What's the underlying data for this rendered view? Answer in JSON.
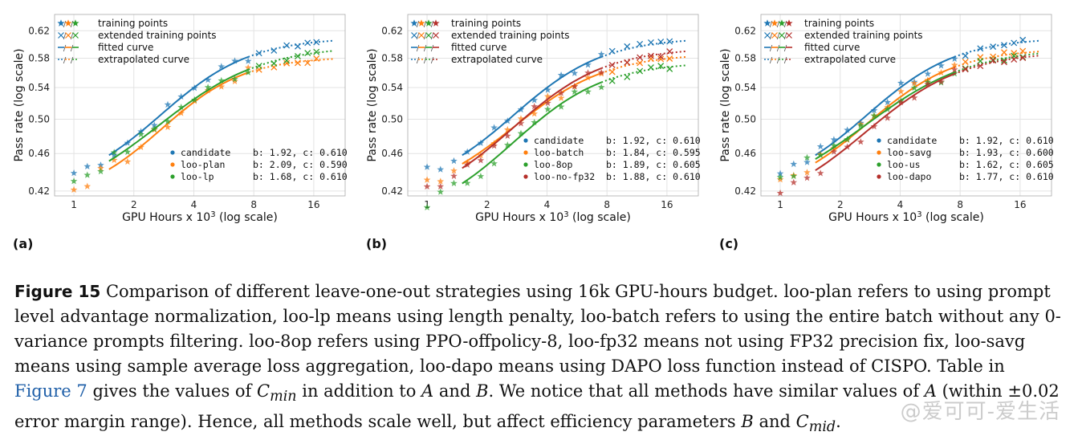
{
  "colors": {
    "blue": "#1f77b4",
    "orange": "#ff7f0e",
    "green": "#2ca02c",
    "red": "#b5302b"
  },
  "legend_top": {
    "training": "training points",
    "extended": "extended training points",
    "fitted": "fitted curve",
    "extrapolated": "extrapolated curve"
  },
  "panel_labels": [
    "(a)",
    "(b)",
    "(c)"
  ],
  "chart_data": [
    {
      "type": "line",
      "xlabel": "GPU Hours x 10^3 (log scale)",
      "ylabel": "Pass rate (log scale)",
      "xticks": [
        1,
        2,
        4,
        8,
        16
      ],
      "yticks": [
        "0.42",
        "0.46",
        "0.50",
        "0.54",
        "0.58",
        "0.62"
      ],
      "xlim": [
        0.8,
        23
      ],
      "ylim": [
        0.415,
        0.645
      ],
      "series": [
        {
          "name": "candidate",
          "b": 1.92,
          "c": 0.61,
          "color": "blue",
          "fit_range": [
            1.5,
            7.5
          ],
          "ext_range": [
            7.5,
            20
          ],
          "offset": 0.0
        },
        {
          "name": "loo-plan",
          "b": 2.09,
          "c": 0.59,
          "color": "orange",
          "fit_range": [
            1.5,
            7.5
          ],
          "ext_range": [
            7.5,
            20
          ],
          "offset": -0.008
        },
        {
          "name": "loo-lp",
          "b": 1.68,
          "c": 0.61,
          "color": "green",
          "fit_range": [
            1.5,
            7.5
          ],
          "ext_range": [
            7.5,
            20
          ],
          "offset": -0.012
        }
      ],
      "legend_text": [
        {
          "name": "candidate",
          "params": "b: 1.92, c: 0.610"
        },
        {
          "name": "loo-plan",
          "params": "b: 2.09, c: 0.590"
        },
        {
          "name": "loo-lp",
          "params": "b: 1.68, c: 0.610"
        }
      ]
    },
    {
      "type": "line",
      "xlabel": "GPU Hours x 10^3 (log scale)",
      "ylabel": "Pass rate (log scale)",
      "xticks": [
        1,
        2,
        4,
        8,
        16
      ],
      "yticks": [
        "0.42",
        "0.46",
        "0.50",
        "0.54",
        "0.58",
        "0.62"
      ],
      "xlim": [
        0.8,
        23
      ],
      "ylim": [
        0.415,
        0.645
      ],
      "series": [
        {
          "name": "candidate",
          "b": 1.92,
          "c": 0.61,
          "color": "blue",
          "fit_range": [
            1.5,
            7.5
          ],
          "ext_range": [
            7.5,
            20
          ],
          "offset": 0.0
        },
        {
          "name": "loo-batch",
          "b": 1.84,
          "c": 0.595,
          "color": "orange",
          "fit_range": [
            1.5,
            7.5
          ],
          "ext_range": [
            7.5,
            20
          ],
          "offset": -0.008
        },
        {
          "name": "loo-8op",
          "b": 1.89,
          "c": 0.605,
          "color": "green",
          "fit_range": [
            1.5,
            7.5
          ],
          "ext_range": [
            7.5,
            20
          ],
          "offset": -0.03
        },
        {
          "name": "loo-no-fp32",
          "b": 1.88,
          "c": 0.61,
          "color": "red",
          "fit_range": [
            1.5,
            7.5
          ],
          "ext_range": [
            7.5,
            20
          ],
          "offset": -0.015
        }
      ],
      "legend_text": [
        {
          "name": "candidate",
          "params": "b: 1.92, c: 0.610"
        },
        {
          "name": "loo-batch",
          "params": "b: 1.84, c: 0.595"
        },
        {
          "name": "loo-8op",
          "params": "b: 1.89, c: 0.605"
        },
        {
          "name": "loo-no-fp32",
          "params": "b: 1.88, c: 0.610"
        }
      ]
    },
    {
      "type": "line",
      "xlabel": "GPU Hours x 10^3 (log scale)",
      "ylabel": "Pass rate (log scale)",
      "xticks": [
        1,
        2,
        4,
        8,
        16
      ],
      "yticks": [
        "0.42",
        "0.46",
        "0.50",
        "0.54",
        "0.58",
        "0.62"
      ],
      "xlim": [
        0.8,
        23
      ],
      "ylim": [
        0.415,
        0.645
      ],
      "series": [
        {
          "name": "candidate",
          "b": 1.92,
          "c": 0.61,
          "color": "blue",
          "fit_range": [
            1.5,
            7.5
          ],
          "ext_range": [
            7.5,
            20
          ],
          "offset": 0.0
        },
        {
          "name": "loo-savg",
          "b": 1.93,
          "c": 0.6,
          "color": "orange",
          "fit_range": [
            1.5,
            7.5
          ],
          "ext_range": [
            7.5,
            20
          ],
          "offset": -0.006
        },
        {
          "name": "loo-us",
          "b": 1.62,
          "c": 0.605,
          "color": "green",
          "fit_range": [
            1.5,
            7.5
          ],
          "ext_range": [
            7.5,
            20
          ],
          "offset": -0.01
        },
        {
          "name": "loo-dapo",
          "b": 1.77,
          "c": 0.61,
          "color": "red",
          "fit_range": [
            1.5,
            7.5
          ],
          "ext_range": [
            7.5,
            20
          ],
          "offset": -0.02
        }
      ],
      "legend_text": [
        {
          "name": "candidate",
          "params": "b: 1.92, c: 0.610"
        },
        {
          "name": "loo-savg",
          "params": "b: 1.93, c: 0.600"
        },
        {
          "name": "loo-us",
          "params": "b: 1.62, c: 0.605"
        },
        {
          "name": "loo-dapo",
          "params": "b: 1.77, c: 0.610"
        }
      ]
    }
  ],
  "caption": {
    "title": "Figure 15",
    "p1": " Comparison of different leave-one-out strategies using 16k GPU-hours budget. loo-plan refers to using prompt level advantage normalization, loo-lp means using length penalty, loo-batch refers to using the entire batch without any 0-variance prompts filtering. loo-8op refers using PPO-offpolicy-8, loo-fp32 means not using FP32 precision fix, loo-savg means using sample average loss aggregation, loo-dapo means using DAPO loss function instead of CISPO. Table in ",
    "ref": "Figure 7",
    "p2": " gives the values of ",
    "cmin": "C",
    "cmin_sub": "min",
    "p3": " in addition to ",
    "a": "A",
    "p4": " and ",
    "b": "B",
    "p5": ". We notice that all methods have similar values of ",
    "a2": "A",
    "p6": " (within ±0.02 error margin range). Hence, all methods scale well, but affect efficiency parameters ",
    "b2": "B",
    "p7": " and ",
    "c2": "C",
    "c2_sub": "mid",
    "p8": "."
  },
  "watermark": "@爱可可-爱生活"
}
